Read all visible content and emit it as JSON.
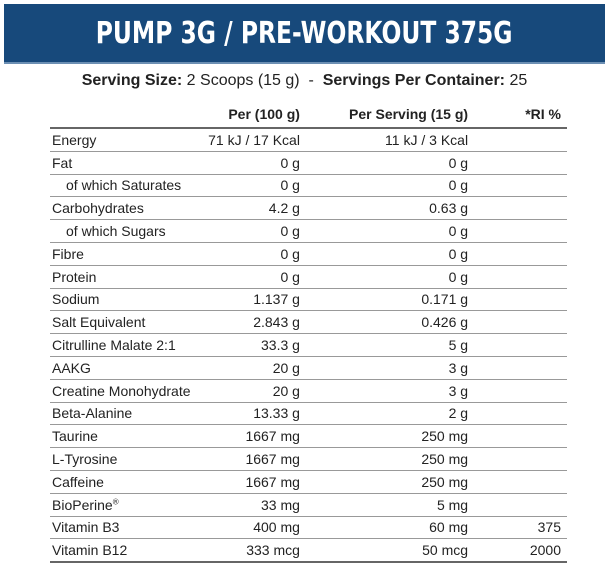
{
  "title": "PUMP 3G / PRE-WORKOUT 375G",
  "serving": {
    "size_label": "Serving Size:",
    "size_value": "2 Scoops (15 g)",
    "separator": "-",
    "per_container_label": "Servings Per Container:",
    "per_container_value": "25"
  },
  "brand_color": "#17497b",
  "table": {
    "headers": [
      "",
      "Per (100 g)",
      "Per Serving (15 g)",
      "*RI %"
    ],
    "rows": [
      {
        "name": "Energy",
        "per100": "71 kJ / 17 Kcal",
        "serving": "11 kJ / 3 Kcal",
        "ri": "",
        "sub": false
      },
      {
        "name": "Fat",
        "per100": "0 g",
        "serving": "0 g",
        "ri": "",
        "sub": false
      },
      {
        "name": "of which Saturates",
        "per100": "0 g",
        "serving": "0 g",
        "ri": "",
        "sub": true
      },
      {
        "name": "Carbohydrates",
        "per100": "4.2 g",
        "serving": "0.63 g",
        "ri": "",
        "sub": false
      },
      {
        "name": "of which Sugars",
        "per100": "0 g",
        "serving": "0 g",
        "ri": "",
        "sub": true
      },
      {
        "name": "Fibre",
        "per100": "0 g",
        "serving": "0 g",
        "ri": "",
        "sub": false
      },
      {
        "name": "Protein",
        "per100": "0 g",
        "serving": "0 g",
        "ri": "",
        "sub": false
      },
      {
        "name": "Sodium",
        "per100": "1.137 g",
        "serving": "0.171 g",
        "ri": "",
        "sub": false
      },
      {
        "name": "Salt Equivalent",
        "per100": "2.843 g",
        "serving": "0.426 g",
        "ri": "",
        "sub": false
      },
      {
        "name": "Citrulline Malate 2:1",
        "per100": "33.3 g",
        "serving": "5 g",
        "ri": "",
        "sub": false
      },
      {
        "name": "AAKG",
        "per100": "20 g",
        "serving": "3 g",
        "ri": "",
        "sub": false
      },
      {
        "name": "Creatine Monohydrate",
        "per100": "20 g",
        "serving": "3 g",
        "ri": "",
        "sub": false
      },
      {
        "name": "Beta-Alanine",
        "per100": "13.33 g",
        "serving": "2 g",
        "ri": "",
        "sub": false
      },
      {
        "name": "Taurine",
        "per100": "1667 mg",
        "serving": "250 mg",
        "ri": "",
        "sub": false
      },
      {
        "name": "L-Tyrosine",
        "per100": "1667 mg",
        "serving": "250 mg",
        "ri": "",
        "sub": false
      },
      {
        "name": "Caffeine",
        "per100": "1667 mg",
        "serving": "250 mg",
        "ri": "",
        "sub": false
      },
      {
        "name": "BioPerine",
        "mark": "®",
        "per100": "33 mg",
        "serving": "5 mg",
        "ri": "",
        "sub": false
      },
      {
        "name": "Vitamin B3",
        "per100": "400 mg",
        "serving": "60 mg",
        "ri": "375",
        "sub": false
      },
      {
        "name": "Vitamin B12",
        "per100": "333 mcg",
        "serving": "50 mcg",
        "ri": "2000",
        "sub": false
      }
    ]
  }
}
